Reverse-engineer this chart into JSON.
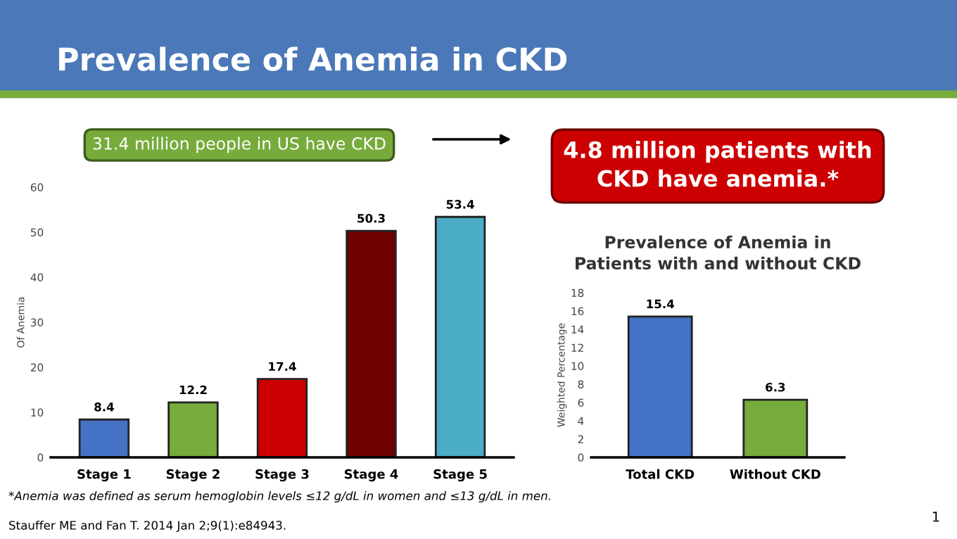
{
  "chart_data": [
    {
      "type": "bar",
      "title": "Prevalence of Anemia in CKD",
      "ylabel": "Of Anemia",
      "categories": [
        "Stage 1",
        "Stage 2",
        "Stage 3",
        "Stage 4",
        "Stage 5"
      ],
      "values": [
        8.4,
        12.2,
        17.4,
        50.3,
        53.4
      ],
      "colors": [
        "#4472c4",
        "#77ab3b",
        "#cc0000",
        "#6e0000",
        "#4bacc6"
      ],
      "ylim": [
        0,
        60
      ],
      "yticks": [
        0,
        10,
        20,
        30,
        40,
        50,
        60
      ],
      "data_labels": true,
      "grid": false,
      "annotations": [
        "31.4 million people in US have CKD",
        "4.8 million patients with CKD have anemia.*",
        "*Anemia was defined as serum hemoglobin levels ≤12 g/dL in women and ≤13 g/dL in men.",
        "Stauffer ME and Fan T. 2014 Jan 2;9(1):e84943.",
        "1"
      ]
    },
    {
      "type": "bar",
      "title": "Prevalence of Anemia in Patients with and without CKD",
      "ylabel": "Weighted Percentage",
      "categories": [
        "Total CKD",
        "Without CKD"
      ],
      "values": [
        15.4,
        6.3
      ],
      "colors": [
        "#4472c4",
        "#77ab3b"
      ],
      "ylim": [
        0,
        18
      ],
      "yticks": [
        0,
        2,
        4,
        6,
        8,
        10,
        12,
        14,
        16,
        18
      ],
      "data_labels": true,
      "grid": false
    }
  ]
}
